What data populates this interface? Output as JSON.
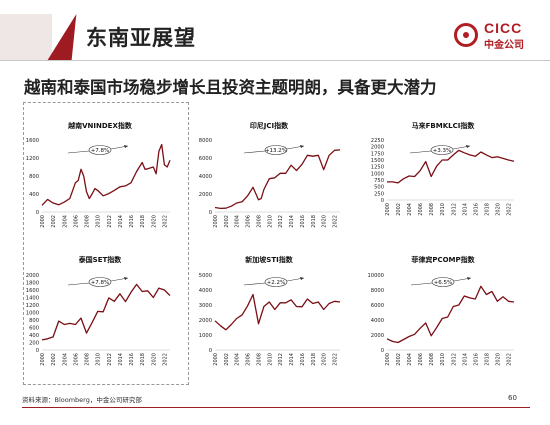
{
  "header": {
    "title": "东南亚展望"
  },
  "logo": {
    "en": "CICC",
    "cn": "中金公司"
  },
  "subtitle": "越南和泰国市场稳步增长且投资主题明朗，具备更大潜力",
  "footer": {
    "source": "资料来源：Bloomberg，中金公司研究部",
    "page": "60"
  },
  "colors": {
    "brand": "#9e1b22",
    "line": "#7a0f14"
  },
  "chart_data": [
    {
      "type": "line",
      "title": "越南VNINDEX指数",
      "growth": "+7.8%",
      "yticks": [
        0,
        400,
        800,
        1200,
        1600
      ],
      "ylim": [
        0,
        1600
      ],
      "xticks": [
        "2000",
        "2002",
        "2004",
        "2006",
        "2008",
        "2010",
        "2012",
        "2014",
        "2016",
        "2018",
        "2020",
        "2022"
      ],
      "x": [
        2000,
        2001,
        2002,
        2003,
        2004,
        2005,
        2006,
        2006.5,
        2007,
        2007.5,
        2008,
        2008.5,
        2009,
        2009.5,
        2010,
        2011,
        2012,
        2013,
        2014,
        2015,
        2016,
        2017,
        2018,
        2018.5,
        2019,
        2020,
        2020.5,
        2021,
        2021.5,
        2022,
        2022.5,
        2023
      ],
      "values": [
        150,
        280,
        200,
        160,
        220,
        300,
        650,
        700,
        950,
        800,
        450,
        300,
        400,
        520,
        480,
        360,
        410,
        480,
        560,
        580,
        650,
        900,
        1100,
        950,
        960,
        1000,
        850,
        1350,
        1500,
        1050,
        1000,
        1150
      ]
    },
    {
      "type": "line",
      "title": "印尼JCI指数",
      "growth": "+13.2%",
      "yticks": [
        0,
        2000,
        4000,
        6000,
        8000
      ],
      "ylim": [
        0,
        8000
      ],
      "xticks": [
        "2000",
        "2002",
        "2004",
        "2006",
        "2008",
        "2010",
        "2012",
        "2014",
        "2016",
        "2018",
        "2020",
        "2022"
      ],
      "x": [
        2000,
        2001,
        2002,
        2003,
        2004,
        2005,
        2006,
        2007,
        2008,
        2008.5,
        2009,
        2010,
        2011,
        2012,
        2013,
        2014,
        2015,
        2016,
        2017,
        2018,
        2019,
        2020,
        2020.5,
        2021,
        2022,
        2023
      ],
      "values": [
        500,
        400,
        420,
        650,
        1000,
        1150,
        1800,
        2750,
        1350,
        1500,
        2500,
        3700,
        3800,
        4300,
        4300,
        5200,
        4600,
        5300,
        6300,
        6200,
        6300,
        4700,
        5500,
        6300,
        6850,
        6900
      ]
    },
    {
      "type": "line",
      "title": "马来FBMKLCI指数",
      "growth": "+3.3%",
      "yticks": [
        0,
        250,
        500,
        750,
        1000,
        1250,
        1500,
        1750,
        2000,
        2250
      ],
      "ylim": [
        0,
        2250
      ],
      "xticks": [
        "2000",
        "2002",
        "2004",
        "2006",
        "2008",
        "2010",
        "2012",
        "2014",
        "2016",
        "2018",
        "2020",
        "2022"
      ],
      "x": [
        2000,
        2001,
        2002,
        2003,
        2004,
        2005,
        2006,
        2007,
        2008,
        2009,
        2010,
        2011,
        2012,
        2013,
        2014,
        2015,
        2016,
        2017,
        2018,
        2019,
        2020,
        2021,
        2022,
        2023
      ],
      "values": [
        680,
        680,
        640,
        800,
        900,
        880,
        1100,
        1440,
        880,
        1270,
        1500,
        1500,
        1690,
        1860,
        1770,
        1690,
        1640,
        1800,
        1690,
        1590,
        1620,
        1560,
        1500,
        1450
      ]
    },
    {
      "type": "line",
      "title": "泰国SET指数",
      "growth": "+7.8%",
      "yticks": [
        0,
        200,
        400,
        600,
        800,
        1000,
        1200,
        1400,
        1600,
        1800,
        2000
      ],
      "ylim": [
        0,
        2000
      ],
      "xticks": [
        "2000",
        "2002",
        "2004",
        "2006",
        "2008",
        "2010",
        "2012",
        "2014",
        "2016",
        "2018",
        "2020",
        "2022"
      ],
      "x": [
        2000,
        2001,
        2002,
        2003,
        2004,
        2005,
        2006,
        2007,
        2008,
        2009,
        2010,
        2011,
        2012,
        2013,
        2014,
        2015,
        2016,
        2017,
        2018,
        2019,
        2020,
        2021,
        2022,
        2023
      ],
      "values": [
        270,
        300,
        350,
        770,
        680,
        710,
        680,
        850,
        450,
        730,
        1030,
        1020,
        1390,
        1300,
        1500,
        1290,
        1540,
        1750,
        1560,
        1580,
        1400,
        1650,
        1600,
        1450
      ]
    },
    {
      "type": "line",
      "title": "新加坡STI指数",
      "growth": "+2.2%",
      "yticks": [
        0,
        1000,
        2000,
        3000,
        4000,
        5000
      ],
      "ylim": [
        0,
        5000
      ],
      "xticks": [
        "2000",
        "2002",
        "2004",
        "2006",
        "2008",
        "2010",
        "2012",
        "2014",
        "2016",
        "2018",
        "2020",
        "2022"
      ],
      "x": [
        2000,
        2001,
        2002,
        2003,
        2004,
        2005,
        2006,
        2007,
        2008,
        2009,
        2010,
        2011,
        2012,
        2013,
        2014,
        2015,
        2016,
        2017,
        2018,
        2019,
        2020,
        2021,
        2022,
        2023
      ],
      "values": [
        1950,
        1620,
        1350,
        1700,
        2100,
        2350,
        2950,
        3700,
        1750,
        2900,
        3200,
        2700,
        3150,
        3150,
        3350,
        2900,
        2880,
        3400,
        3100,
        3200,
        2700,
        3100,
        3250,
        3200
      ]
    },
    {
      "type": "line",
      "title": "菲律宾PCOMP指数",
      "growth": "+6.5%",
      "yticks": [
        0,
        2000,
        4000,
        6000,
        8000,
        10000
      ],
      "ylim": [
        0,
        10000
      ],
      "xticks": [
        "2000",
        "2002",
        "2004",
        "2006",
        "2008",
        "2010",
        "2012",
        "2014",
        "2016",
        "2018",
        "2020",
        "2022"
      ],
      "x": [
        2000,
        2001,
        2002,
        2003,
        2004,
        2005,
        2006,
        2007,
        2008,
        2009,
        2010,
        2011,
        2012,
        2013,
        2014,
        2015,
        2016,
        2017,
        2018,
        2019,
        2020,
        2021,
        2022,
        2023
      ],
      "values": [
        1500,
        1150,
        1000,
        1400,
        1800,
        2100,
        2900,
        3600,
        1900,
        3000,
        4200,
        4400,
        5800,
        6000,
        7200,
        6950,
        6800,
        8500,
        7400,
        7800,
        6500,
        7100,
        6500,
        6400
      ]
    }
  ]
}
